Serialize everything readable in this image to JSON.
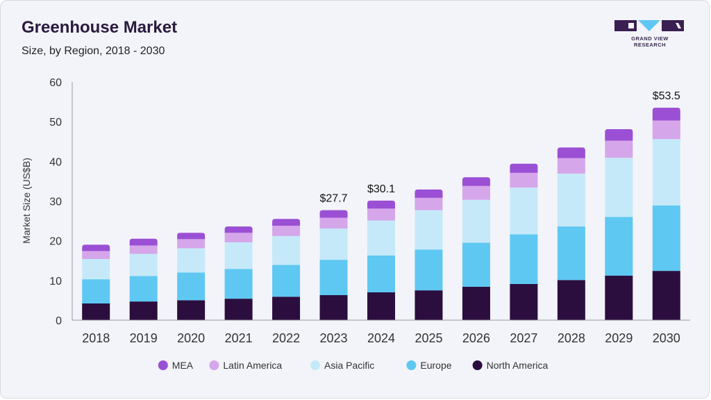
{
  "header": {
    "title": "Greenhouse Market",
    "subtitle": "Size, by Region, 2018 - 2030"
  },
  "logo": {
    "text": "GRAND VIEW RESEARCH"
  },
  "colors": {
    "MEA": "#9b4fd4",
    "Latin America": "#d5a6ea",
    "Asia Pacific": "#c6e9f9",
    "Europe": "#5ec8f2",
    "North America": "#2b0e3e"
  },
  "chart_data": {
    "type": "bar",
    "stacked": true,
    "ylabel": "Market Size (US$B)",
    "xlabel": "",
    "ylim": [
      0,
      60
    ],
    "yticks": [
      0,
      10,
      20,
      30,
      40,
      50,
      60
    ],
    "categories": [
      "2018",
      "2019",
      "2020",
      "2021",
      "2022",
      "2023",
      "2024",
      "2025",
      "2026",
      "2027",
      "2028",
      "2029",
      "2030"
    ],
    "series": [
      {
        "name": "North America",
        "values": [
          4.2,
          4.7,
          5.0,
          5.4,
          5.9,
          6.3,
          7.0,
          7.5,
          8.4,
          9.1,
          10.1,
          11.2,
          12.4
        ]
      },
      {
        "name": "Europe",
        "values": [
          6.1,
          6.4,
          7.0,
          7.5,
          8.0,
          8.9,
          9.3,
          10.3,
          11.1,
          12.5,
          13.5,
          14.8,
          16.5
        ]
      },
      {
        "name": "Asia Pacific",
        "values": [
          5.1,
          5.6,
          6.1,
          6.7,
          7.3,
          7.9,
          8.8,
          9.9,
          10.8,
          11.8,
          13.3,
          14.9,
          16.7
        ]
      },
      {
        "name": "Latin America",
        "values": [
          2.0,
          2.1,
          2.3,
          2.4,
          2.6,
          2.7,
          3.0,
          3.1,
          3.5,
          3.7,
          3.9,
          4.3,
          4.7
        ]
      },
      {
        "name": "MEA",
        "values": [
          1.6,
          1.7,
          1.6,
          1.6,
          1.7,
          1.9,
          2.0,
          2.1,
          2.2,
          2.3,
          2.7,
          2.9,
          3.2
        ]
      }
    ],
    "annotations": [
      {
        "category": "2023",
        "label": "$27.7",
        "value": 27.7
      },
      {
        "category": "2024",
        "label": "$30.1",
        "value": 30.1
      },
      {
        "category": "2030",
        "label": "$53.5",
        "value": 53.5
      }
    ],
    "legend": {
      "position": "bottom",
      "order": [
        "MEA",
        "Latin America",
        "Asia Pacific",
        "Europe",
        "North America"
      ]
    }
  }
}
